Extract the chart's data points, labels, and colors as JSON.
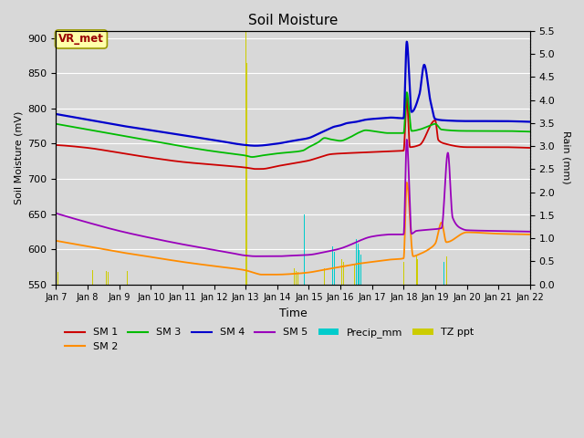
{
  "title": "Soil Moisture",
  "xlabel": "Time",
  "ylabel_left": "Soil Moisture (mV)",
  "ylabel_right": "Rain (mm)",
  "ylim_left": [
    550,
    910
  ],
  "ylim_right": [
    0.0,
    5.5
  ],
  "yticks_left": [
    550,
    600,
    650,
    700,
    750,
    800,
    850,
    900
  ],
  "yticks_right": [
    0.0,
    0.5,
    1.0,
    1.5,
    2.0,
    2.5,
    3.0,
    3.5,
    4.0,
    4.5,
    5.0,
    5.5
  ],
  "figsize": [
    6.4,
    4.8
  ],
  "dpi": 100,
  "bg_color": "#d8d8d8",
  "colors": {
    "SM1": "#cc0000",
    "SM2": "#ff8c00",
    "SM3": "#00bb00",
    "SM4": "#0000cc",
    "SM5": "#9900bb",
    "Precip_mm": "#00cccc",
    "TZ_ppt": "#cccc00"
  },
  "vr_met_label": "VR_met",
  "annotation_box_facecolor": "#ffffaa",
  "annotation_text_color": "#990000",
  "annotation_edge_color": "#999900"
}
